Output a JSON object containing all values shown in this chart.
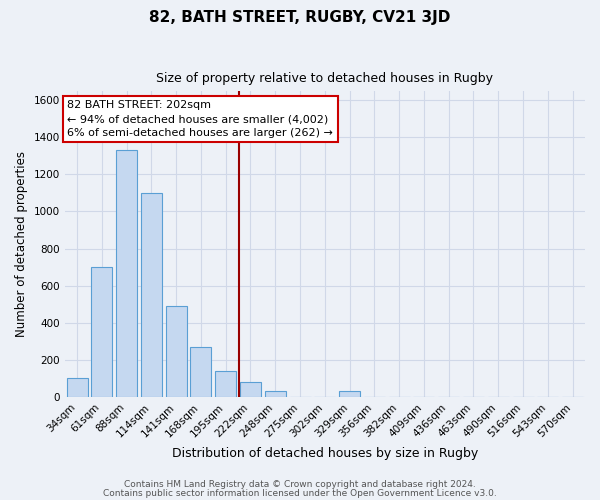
{
  "title": "82, BATH STREET, RUGBY, CV21 3JD",
  "subtitle": "Size of property relative to detached houses in Rugby",
  "xlabel": "Distribution of detached houses by size in Rugby",
  "ylabel": "Number of detached properties",
  "categories": [
    "34sqm",
    "61sqm",
    "88sqm",
    "114sqm",
    "141sqm",
    "168sqm",
    "195sqm",
    "222sqm",
    "248sqm",
    "275sqm",
    "302sqm",
    "329sqm",
    "356sqm",
    "382sqm",
    "409sqm",
    "436sqm",
    "463sqm",
    "490sqm",
    "516sqm",
    "543sqm",
    "570sqm"
  ],
  "values": [
    100,
    700,
    1330,
    1100,
    490,
    270,
    140,
    80,
    30,
    0,
    0,
    30,
    0,
    0,
    0,
    0,
    0,
    0,
    0,
    0,
    0
  ],
  "bar_color": "#c5d8f0",
  "bar_edge_color": "#5a9fd4",
  "bar_width": 0.85,
  "vline_x": 6.55,
  "vline_color": "#990000",
  "ylim": [
    0,
    1650
  ],
  "yticks": [
    0,
    200,
    400,
    600,
    800,
    1000,
    1200,
    1400,
    1600
  ],
  "annotation_line1": "82 BATH STREET: 202sqm",
  "annotation_line2": "← 94% of detached houses are smaller (4,002)",
  "annotation_line3": "6% of semi-detached houses are larger (262) →",
  "annotation_box_color": "#ffffff",
  "annotation_box_edge": "#cc0000",
  "footer1": "Contains HM Land Registry data © Crown copyright and database right 2024.",
  "footer2": "Contains public sector information licensed under the Open Government Licence v3.0.",
  "bg_color": "#edf1f7",
  "grid_color": "#d0d8e8",
  "title_fontsize": 11,
  "subtitle_fontsize": 9,
  "ylabel_fontsize": 8.5,
  "xlabel_fontsize": 9,
  "tick_fontsize": 7.5,
  "footer_fontsize": 6.5
}
